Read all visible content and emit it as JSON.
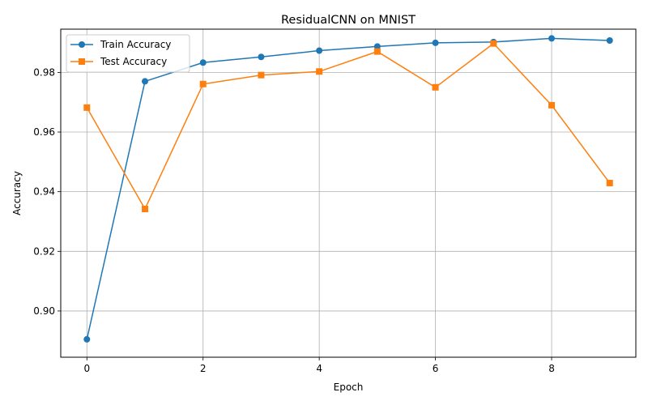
{
  "chart_data": {
    "type": "line",
    "title": "ResidualCNN on MNIST",
    "xlabel": "Epoch",
    "ylabel": "Accuracy",
    "x": [
      0,
      1,
      2,
      3,
      4,
      5,
      6,
      7,
      8,
      9
    ],
    "xlim": [
      -0.45,
      9.45
    ],
    "ylim": [
      0.8845,
      0.9945
    ],
    "xticks": [
      "0",
      "2",
      "4",
      "6",
      "8"
    ],
    "yticks": [
      "0.90",
      "0.92",
      "0.94",
      "0.96",
      "0.98"
    ],
    "grid": true,
    "legend_position": "top-left",
    "series": [
      {
        "name": "Train Accuracy",
        "color": "#1f77b4",
        "marker": "circle",
        "values": [
          0.8905,
          0.977,
          0.9833,
          0.9852,
          0.9873,
          0.9887,
          0.9899,
          0.9902,
          0.9914,
          0.9907
        ]
      },
      {
        "name": "Test Accuracy",
        "color": "#ff7f0e",
        "marker": "square",
        "values": [
          0.9682,
          0.9342,
          0.9761,
          0.9791,
          0.9803,
          0.987,
          0.975,
          0.9897,
          0.969,
          0.9429
        ]
      }
    ]
  }
}
